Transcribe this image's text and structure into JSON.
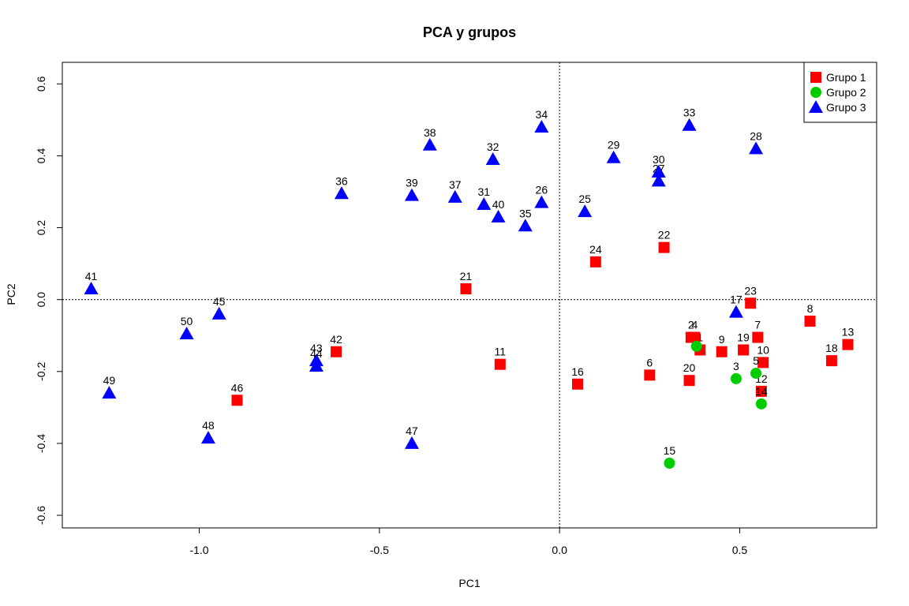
{
  "chart_data": {
    "type": "scatter",
    "title": "PCA y grupos",
    "xlabel": "PC1",
    "ylabel": "PC2",
    "xlim": [
      -1.38,
      0.88
    ],
    "ylim": [
      -0.635,
      0.66
    ],
    "xticks": [
      -1.0,
      -0.5,
      0.0,
      0.5
    ],
    "xtick_labels": [
      "-1.0",
      "-0.5",
      "0.0",
      "0.5"
    ],
    "yticks": [
      -0.6,
      -0.4,
      -0.2,
      0.0,
      0.2,
      0.4,
      0.6
    ],
    "ytick_labels": [
      "-0.6",
      "-0.4",
      "-0.2",
      "0.0",
      "0.2",
      "0.4",
      "0.6"
    ],
    "reference_lines": {
      "x": 0,
      "y": 0,
      "style": "dotted"
    },
    "legend": {
      "position": "top-right"
    },
    "series": [
      {
        "name": "Grupo 1",
        "color": "#ff0000",
        "marker": "square",
        "points": [
          {
            "label": "1",
            "x": 0.39,
            "y": -0.14
          },
          {
            "label": "2",
            "x": 0.365,
            "y": -0.105
          },
          {
            "label": "4",
            "x": 0.375,
            "y": -0.105
          },
          {
            "label": "6",
            "x": 0.25,
            "y": -0.21
          },
          {
            "label": "7",
            "x": 0.55,
            "y": -0.105
          },
          {
            "label": "8",
            "x": 0.695,
            "y": -0.06
          },
          {
            "label": "9",
            "x": 0.45,
            "y": -0.145
          },
          {
            "label": "10",
            "x": 0.565,
            "y": -0.175
          },
          {
            "label": "11",
            "x": -0.165,
            "y": -0.18
          },
          {
            "label": "12",
            "x": 0.56,
            "y": -0.255
          },
          {
            "label": "13",
            "x": 0.8,
            "y": -0.125
          },
          {
            "label": "16",
            "x": 0.05,
            "y": -0.235
          },
          {
            "label": "18",
            "x": 0.755,
            "y": -0.17
          },
          {
            "label": "19",
            "x": 0.51,
            "y": -0.14
          },
          {
            "label": "20",
            "x": 0.36,
            "y": -0.225
          },
          {
            "label": "21",
            "x": -0.26,
            "y": 0.03
          },
          {
            "label": "22",
            "x": 0.29,
            "y": 0.145
          },
          {
            "label": "23",
            "x": 0.53,
            "y": -0.01
          },
          {
            "label": "24",
            "x": 0.1,
            "y": 0.105
          },
          {
            "label": "42",
            "x": -0.62,
            "y": -0.145
          },
          {
            "label": "46",
            "x": -0.895,
            "y": -0.28
          }
        ]
      },
      {
        "name": "Grupo 2",
        "color": "#00cd00",
        "marker": "circle",
        "points": [
          {
            "label": "3",
            "x": 0.49,
            "y": -0.22
          },
          {
            "label": "5",
            "x": 0.545,
            "y": -0.205
          },
          {
            "label": "14",
            "x": 0.56,
            "y": -0.29
          },
          {
            "label": "15",
            "x": 0.305,
            "y": -0.455
          },
          {
            "label": "4",
            "x": 0.38,
            "y": -0.13,
            "hide_label": true
          }
        ]
      },
      {
        "name": "Grupo 3",
        "color": "#0000ff",
        "marker": "triangle",
        "points": [
          {
            "label": "17",
            "x": 0.49,
            "y": -0.035
          },
          {
            "label": "25",
            "x": 0.07,
            "y": 0.245
          },
          {
            "label": "26",
            "x": -0.05,
            "y": 0.27
          },
          {
            "label": "27",
            "x": 0.275,
            "y": 0.33
          },
          {
            "label": "28",
            "x": 0.545,
            "y": 0.42
          },
          {
            "label": "29",
            "x": 0.15,
            "y": 0.395
          },
          {
            "label": "30",
            "x": 0.275,
            "y": 0.355
          },
          {
            "label": "31",
            "x": -0.21,
            "y": 0.265
          },
          {
            "label": "32",
            "x": -0.185,
            "y": 0.39
          },
          {
            "label": "33",
            "x": 0.36,
            "y": 0.485
          },
          {
            "label": "34",
            "x": -0.05,
            "y": 0.48
          },
          {
            "label": "35",
            "x": -0.095,
            "y": 0.205
          },
          {
            "label": "36",
            "x": -0.605,
            "y": 0.295
          },
          {
            "label": "37",
            "x": -0.29,
            "y": 0.285
          },
          {
            "label": "38",
            "x": -0.36,
            "y": 0.43
          },
          {
            "label": "39",
            "x": -0.41,
            "y": 0.29
          },
          {
            "label": "40",
            "x": -0.17,
            "y": 0.23
          },
          {
            "label": "41",
            "x": -1.3,
            "y": 0.03
          },
          {
            "label": "43",
            "x": -0.675,
            "y": -0.17
          },
          {
            "label": "44",
            "x": -0.675,
            "y": -0.185
          },
          {
            "label": "45",
            "x": -0.945,
            "y": -0.04
          },
          {
            "label": "47",
            "x": -0.41,
            "y": -0.4
          },
          {
            "label": "48",
            "x": -0.975,
            "y": -0.385
          },
          {
            "label": "49",
            "x": -1.25,
            "y": -0.26
          },
          {
            "label": "50",
            "x": -1.035,
            "y": -0.095
          }
        ]
      }
    ]
  }
}
